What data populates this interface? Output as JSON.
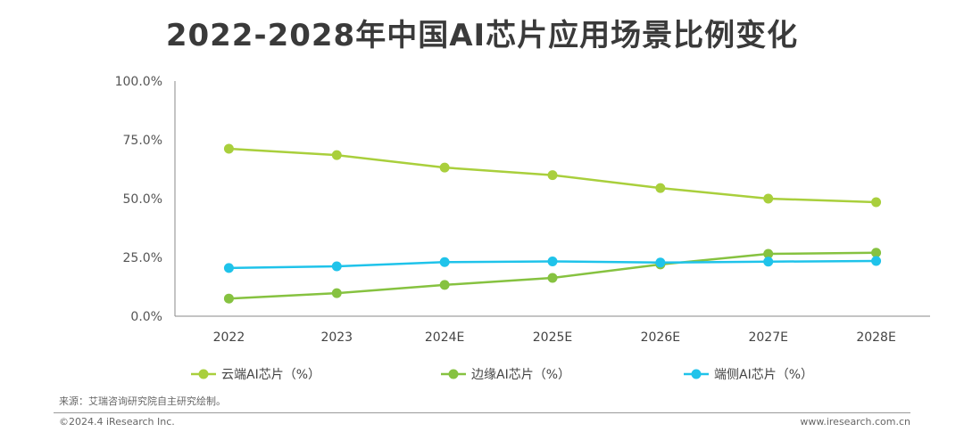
{
  "chart_data": {
    "type": "line",
    "title": "2022-2028年中国AI芯片应用场景比例变化",
    "categories": [
      "2022",
      "2023",
      "2024E",
      "2025E",
      "2026E",
      "2027E",
      "2028E"
    ],
    "series": [
      {
        "name": "云端AI芯片（%）",
        "color": "#a9cf3c",
        "values": [
          71.2,
          68.5,
          63.2,
          60.0,
          54.5,
          50.0,
          48.5
        ]
      },
      {
        "name": "边缘AI芯片（%）",
        "color": "#86c240",
        "values": [
          7.5,
          9.8,
          13.3,
          16.3,
          22.0,
          26.5,
          27.0
        ]
      },
      {
        "name": "端侧AI芯片（%）",
        "color": "#1fc3ea",
        "values": [
          20.5,
          21.2,
          23.0,
          23.3,
          22.8,
          23.2,
          23.5
        ]
      }
    ],
    "ylim": [
      0,
      100
    ],
    "yticks": [
      "0.0%",
      "25.0%",
      "50.0%",
      "75.0%",
      "100.0%"
    ],
    "grid": false,
    "legend": "bottom"
  },
  "source": "来源：艾瑞咨询研究院自主研究绘制。",
  "copyright": "©2024.4 iResearch Inc.",
  "website": "www.iresearch.com.cn"
}
